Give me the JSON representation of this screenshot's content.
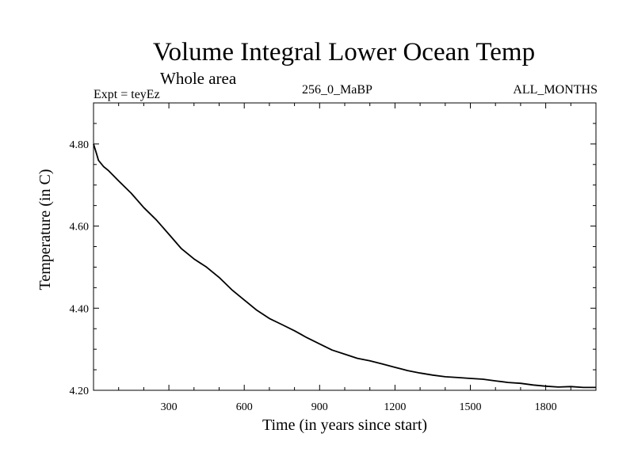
{
  "chart_data": {
    "type": "line",
    "title": "Volume Integral Lower Ocean Temp",
    "subtitle": "Whole area",
    "expt_label": "Expt = teyEz",
    "center_label": "256_0_MaBP",
    "right_label": "ALL_MONTHS",
    "xlabel": "Time (in years since start)",
    "ylabel": "Temperature (in C)",
    "xlim": [
      0,
      2000
    ],
    "ylim": [
      4.2,
      4.9
    ],
    "xticks": [
      300,
      600,
      900,
      1200,
      1500,
      1800
    ],
    "yticks": [
      4.2,
      4.4,
      4.6,
      4.8
    ],
    "ytick_labels": [
      "4.20",
      "4.40",
      "4.60",
      "4.80"
    ],
    "grid": false,
    "series": [
      {
        "name": "Volume Integral Lower Ocean Temp",
        "x": [
          0,
          10,
          20,
          40,
          60,
          100,
          150,
          200,
          250,
          300,
          350,
          400,
          450,
          500,
          550,
          600,
          650,
          700,
          750,
          800,
          850,
          900,
          950,
          1000,
          1050,
          1100,
          1150,
          1200,
          1250,
          1300,
          1350,
          1400,
          1450,
          1500,
          1550,
          1600,
          1650,
          1700,
          1750,
          1800,
          1850,
          1900,
          1950,
          2000
        ],
        "y": [
          4.8,
          4.78,
          4.76,
          4.745,
          4.735,
          4.71,
          4.68,
          4.645,
          4.615,
          4.58,
          4.545,
          4.52,
          4.5,
          4.475,
          4.445,
          4.42,
          4.395,
          4.375,
          4.36,
          4.345,
          4.328,
          4.313,
          4.298,
          4.288,
          4.278,
          4.272,
          4.264,
          4.256,
          4.248,
          4.242,
          4.237,
          4.233,
          4.231,
          4.229,
          4.227,
          4.223,
          4.219,
          4.217,
          4.213,
          4.21,
          4.208,
          4.209,
          4.207,
          4.207
        ]
      }
    ]
  }
}
